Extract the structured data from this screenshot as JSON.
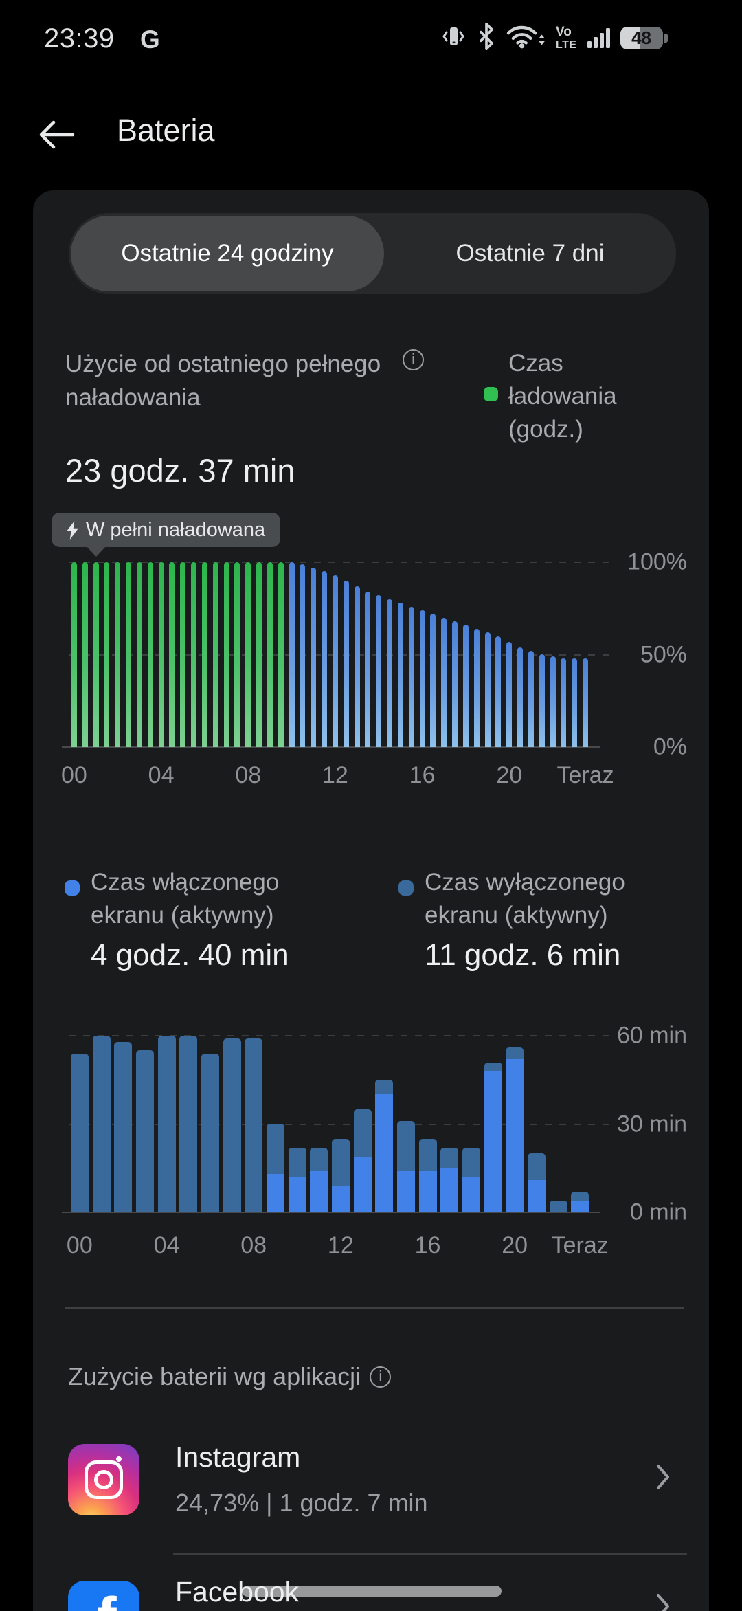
{
  "status_bar": {
    "time": "23:39",
    "network_indicator": "G",
    "volte_top": "Vo",
    "volte_bottom": "LTE",
    "battery_percent": "48"
  },
  "header": {
    "title": "Bateria"
  },
  "tabs": [
    {
      "label": "Ostatnie 24 godziny",
      "selected": true
    },
    {
      "label": "Ostatnie 7 dni",
      "selected": false
    }
  ],
  "usage": {
    "label_line1": "Użycie od ostatniego pełnego",
    "label_line2": "naładowania",
    "duration": "23 godz. 37 min",
    "tooltip": "W pełni naładowana",
    "charging_legend_line1": "Czas",
    "charging_legend_line2": "ładowania",
    "charging_legend_line3": "(godz.)"
  },
  "screen_legend": {
    "on": {
      "line1": "Czas włączonego",
      "line2": "ekranu (aktywny)",
      "value": "4 godz. 40 min"
    },
    "off": {
      "line1": "Czas wyłączonego",
      "line2": "ekranu (aktywny)",
      "value": "11 godz. 6 min"
    }
  },
  "apps_section": {
    "title": "Zużycie baterii wg aplikacji",
    "apps": [
      {
        "name": "Instagram",
        "detail": "24,73% | 1 godz. 7 min"
      },
      {
        "name": "Facebook",
        "detail": ""
      }
    ]
  },
  "colors": {
    "charging_green": "#32bf51",
    "discharge_blue": "#4a80d8",
    "screen_on_blue": "#4282e8",
    "screen_off_blue": "#3a6a9c",
    "facebook_blue": "#1877f2"
  },
  "chart_data": [
    {
      "type": "bar",
      "name": "battery-level-history",
      "title": "Użycie od ostatniego pełnego naładowania",
      "unit": "%",
      "interval_minutes": 30,
      "ylim": [
        0,
        100
      ],
      "y_tick_labels": [
        "100%",
        "50%",
        "0%"
      ],
      "x_tick_labels": [
        "00",
        "04",
        "08",
        "12",
        "16",
        "20",
        "Teraz"
      ],
      "legend": "Czas ładowania (godz.)",
      "charging_bars_count": 20,
      "values": [
        100,
        100,
        100,
        100,
        100,
        100,
        100,
        100,
        100,
        100,
        100,
        100,
        100,
        100,
        100,
        100,
        100,
        100,
        100,
        100,
        100,
        99,
        97,
        95,
        93,
        90,
        87,
        84,
        82,
        80,
        78,
        76,
        74,
        72,
        70,
        68,
        66,
        64,
        62,
        60,
        57,
        54,
        52,
        50,
        49,
        48,
        48,
        48
      ]
    },
    {
      "type": "stacked-bar",
      "name": "screen-time-per-hour",
      "unit": "min",
      "interval_minutes": 60,
      "ylim": [
        0,
        60
      ],
      "y_tick_labels": [
        "60 min",
        "30 min",
        "0 min"
      ],
      "x_tick_labels": [
        "00",
        "04",
        "08",
        "12",
        "16",
        "20",
        "Teraz"
      ],
      "series": [
        {
          "name": "Czas włączonego ekranu (aktywny)",
          "color": "#4282e8",
          "values": [
            0,
            0,
            0,
            0,
            0,
            0,
            0,
            0,
            0,
            13,
            12,
            14,
            9,
            19,
            40,
            14,
            14,
            15,
            12,
            48,
            52,
            11,
            0,
            4
          ]
        },
        {
          "name": "Czas wyłączonego ekranu (aktywny)",
          "color": "#3a6a9c",
          "values": [
            54,
            60,
            58,
            55,
            60,
            60,
            54,
            59,
            59,
            17,
            10,
            8,
            16,
            16,
            5,
            17,
            11,
            7,
            10,
            3,
            4,
            9,
            4,
            3
          ]
        }
      ]
    }
  ]
}
